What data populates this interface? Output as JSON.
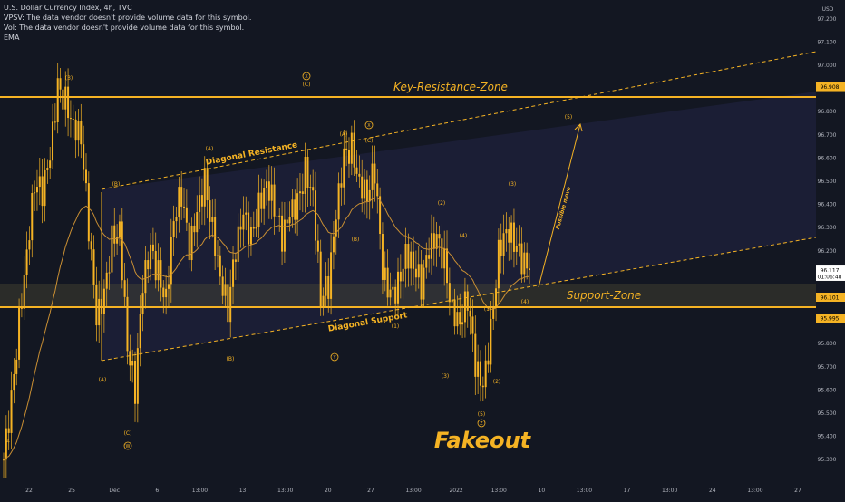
{
  "legend": {
    "title": "U.S. Dollar Currency Index, 4h, TVC",
    "vpsv": "VPSV: The data vendor doesn't provide volume data for this symbol.",
    "vol": "Vol: The data vendor doesn't provide volume data for this symbol.",
    "ema": "EMA"
  },
  "price_axis": {
    "currency": "USD",
    "ticks": [
      "97.200",
      "97.100",
      "97.000",
      "96.900",
      "96.800",
      "96.700",
      "96.600",
      "96.500",
      "96.400",
      "96.300",
      "96.200",
      "96.100",
      "96.000",
      "95.900",
      "95.800",
      "95.700",
      "95.600",
      "95.500",
      "95.400",
      "95.300"
    ],
    "badges": [
      {
        "text": "96.908",
        "value": 96.908,
        "color": "#f5b324",
        "text_color": "#000000"
      },
      {
        "text": "96.117",
        "value": 96.117,
        "color": "#ffffff",
        "text_color": "#000000"
      },
      {
        "text": "01:06:48",
        "value": 96.09,
        "color": "#ffffff",
        "text_color": "#000000"
      },
      {
        "text": "96.101",
        "value": 96.0,
        "color": "#f5b324",
        "text_color": "#000000"
      },
      {
        "text": "95.995",
        "value": 95.91,
        "color": "#f5b324",
        "text_color": "#000000"
      }
    ]
  },
  "time_axis": {
    "ticks": [
      "22",
      "25",
      "Dec",
      "6",
      "13:00",
      "13",
      "13:00",
      "20",
      "27",
      "13:00",
      "2022",
      "13:00",
      "10",
      "13:00",
      "17",
      "13:00",
      "24",
      "13:00",
      "27"
    ]
  },
  "drawings": {
    "key_resistance": "Key-Resistance-Zone",
    "support_zone": "Support-Zone",
    "diagonal_resistance": "Diagonal Resistance",
    "diagonal_support": "Diagonal Support",
    "possible_move": "Possible move",
    "fakeout": "Fakeout"
  },
  "wave_labels": [
    "(3)",
    "X",
    "(C)",
    "(A)",
    "X",
    "(C)",
    "(A)",
    "(B)",
    "(2)",
    "(4)",
    "(3)",
    "(5)",
    "(4)",
    "(1)",
    "(2)",
    "(1)",
    "(3)",
    "(5)",
    "Z",
    "(A)",
    "(B)",
    "Y",
    "(B)",
    "(C)",
    "W",
    "4",
    "(B)"
  ],
  "colors": {
    "background": "#131722",
    "candle": "#f5b324",
    "ema": "#c98f33",
    "zone_line": "#f5b324",
    "label": "#f5b324",
    "axis_text": "#b2b5be"
  },
  "chart_data": {
    "type": "candlestick",
    "symbol": "U.S. Dollar Currency Index",
    "timeframe": "4h",
    "close_series": [
      95.3,
      95.55,
      95.9,
      96.2,
      96.5,
      96.45,
      96.6,
      96.9,
      96.85,
      96.75,
      96.7,
      96.3,
      95.9,
      96.0,
      96.25,
      96.3,
      95.8,
      95.6,
      96.05,
      96.2,
      96.1,
      96.0,
      96.35,
      96.45,
      96.2,
      96.35,
      96.5,
      96.3,
      96.1,
      95.95,
      96.2,
      96.35,
      96.25,
      96.4,
      96.5,
      96.4,
      96.25,
      96.35,
      96.4,
      96.55,
      96.45,
      96.0,
      96.05,
      96.35,
      96.6,
      96.65,
      96.5,
      96.45,
      96.55,
      96.1,
      96.0,
      96.05,
      96.2,
      96.15,
      96.05,
      96.2,
      96.25,
      96.15,
      95.95,
      95.9,
      96.0,
      95.7,
      95.6,
      95.85,
      96.2,
      96.3,
      96.25,
      96.15,
      96.117
    ],
    "levels": {
      "key_resistance": 96.908,
      "support_upper": 96.101,
      "support_lower": 95.995
    }
  }
}
